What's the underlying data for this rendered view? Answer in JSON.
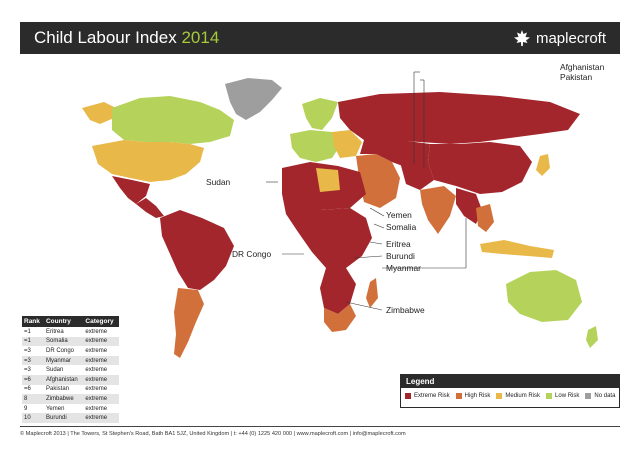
{
  "header": {
    "title": "Child Labour Index",
    "year": "2014",
    "brand": "maplecroft"
  },
  "colors": {
    "extreme": "#a3262c",
    "high": "#d1703a",
    "medium": "#e8b848",
    "low": "#b5d35a",
    "nodata": "#9e9e9e"
  },
  "callouts": {
    "afghanistan": "Afghanistan",
    "pakistan": "Pakistan",
    "sudan": "Sudan",
    "yemen": "Yemen",
    "somalia": "Somalia",
    "dr_congo": "DR Congo",
    "eritrea": "Eritrea",
    "burundi": "Burundi",
    "myanmar": "Myanmar",
    "zimbabwe": "Zimbabwe"
  },
  "rank_table": {
    "headers": [
      "Rank",
      "Country",
      "Category"
    ],
    "rows": [
      [
        "=1",
        "Eritrea",
        "extreme"
      ],
      [
        "=1",
        "Somalia",
        "extreme"
      ],
      [
        "=3",
        "DR Congo",
        "extreme"
      ],
      [
        "=3",
        "Myanmar",
        "extreme"
      ],
      [
        "=3",
        "Sudan",
        "extreme"
      ],
      [
        "=6",
        "Afghanistan",
        "extreme"
      ],
      [
        "=6",
        "Pakistan",
        "extreme"
      ],
      [
        "8",
        "Zimbabwe",
        "extreme"
      ],
      [
        "9",
        "Yemen",
        "extreme"
      ],
      [
        "10",
        "Burundi",
        "extreme"
      ]
    ]
  },
  "legend": {
    "title": "Legend",
    "items": [
      {
        "label": "Extreme Risk",
        "color": "#a3262c"
      },
      {
        "label": "High Risk",
        "color": "#d1703a"
      },
      {
        "label": "Medium Risk",
        "color": "#e8b848"
      },
      {
        "label": "Low Risk",
        "color": "#b5d35a"
      },
      {
        "label": "No data",
        "color": "#9e9e9e"
      }
    ]
  },
  "footer": {
    "text": "© Maplecroft 2013 | The Towers, St Stephen's Road, Bath BA1 5JZ, United Kingdom | t: +44 (0) 1225 420 000 | www.maplecroft.com | info@maplecroft.com"
  }
}
